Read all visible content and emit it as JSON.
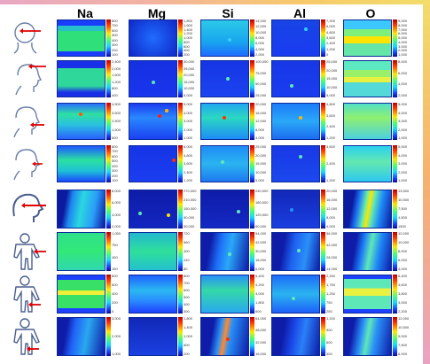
{
  "headers": [
    "Na",
    "Mg",
    "Si",
    "Al",
    "O"
  ],
  "colors": {
    "low": "#0a1aa8",
    "mid": "#29e07a",
    "high": "#ffe400",
    "peak": "#e00000"
  },
  "rows": [
    {
      "icon": "head-front-arrow-icon",
      "ticks": [
        [
          "800",
          "700",
          "600",
          "500",
          "400",
          "300",
          "200",
          "100"
        ],
        [
          "1,800",
          "1,600",
          "1,400",
          "1,200",
          "1,000",
          "800",
          "600",
          "400",
          "200"
        ],
        [
          "14,000",
          "12,000",
          "10,000",
          "8,000",
          "6,000",
          "4,000",
          "2,000"
        ],
        [
          "7,200",
          "6,000",
          "4,800",
          "3,600",
          "2,400",
          "1,200",
          "0"
        ],
        [
          "9,000",
          "8,000",
          "7,000",
          "6,000",
          "5,000",
          "4,000",
          "3,000",
          "2,000",
          "1,000"
        ]
      ]
    },
    {
      "icon": "head-top-arrow-icon",
      "ticks": [
        [
          "2,400",
          "2,000",
          "1,600",
          "1,200",
          "800",
          "400"
        ],
        [
          "30,000",
          "25,000",
          "20,000",
          "15,000",
          "10,000",
          "5,000"
        ],
        [
          "100,000",
          "75,000",
          "50,000",
          "25,000"
        ],
        [
          "25,000",
          "20,000",
          "15,000",
          "10,000",
          "5,000"
        ],
        [
          "8,000",
          "6,000",
          "4,000",
          "2,000"
        ]
      ]
    },
    {
      "icon": "head-back-arrow-icon",
      "ticks": [
        [
          "4,500",
          "3,500",
          "2,500",
          "1,500",
          "500"
        ],
        [
          "5,000",
          "4,000",
          "3,000",
          "2,000",
          "1,000"
        ],
        [
          "20,000",
          "16,000",
          "12,000",
          "8,000",
          "4,000"
        ],
        [
          "4,800",
          "3,600",
          "2,400",
          "1,200"
        ],
        [
          "5,000",
          "4,000",
          "3,000",
          "2,000",
          "1,000"
        ]
      ]
    },
    {
      "icon": "head-ear-arrow-icon",
      "ticks": [
        [
          "800",
          "700",
          "600",
          "500",
          "400",
          "300",
          "200",
          "100"
        ],
        [
          "6,000",
          "4,800",
          "3,600",
          "2,400",
          "1,200"
        ],
        [
          "25,000",
          "20,000",
          "15,000",
          "10,000",
          "5,000"
        ],
        [
          "3,600",
          "2,400",
          "1,200"
        ],
        [
          "5,000",
          "4,000",
          "3,000",
          "2,000",
          "1,000"
        ]
      ]
    },
    {
      "icon": "head-profile-arrow-icon",
      "ticks": [
        [
          "8,000",
          "6,000",
          "4,000",
          "2,000"
        ],
        [
          "270,000",
          "210,000",
          "150,000",
          "90,000",
          "30,000"
        ],
        [
          "240,000",
          "180,000",
          "120,000",
          "60,000"
        ],
        [
          "20,000",
          "16,000",
          "12,000",
          "8,000",
          "4,000"
        ],
        [
          "13,500",
          "10,500",
          "7,500",
          "4,500",
          "1500"
        ]
      ]
    },
    {
      "icon": "body-front-arm-icon",
      "ticks": [
        [
          "1,050",
          "750",
          "450",
          "150"
        ],
        [
          "720",
          "560",
          "400",
          "240",
          "80"
        ],
        [
          "54,000",
          "42,000",
          "30,000",
          "18,000",
          "6,000"
        ],
        [
          "56,000",
          "42,000",
          "28,000",
          "14,000"
        ],
        [
          "12,000",
          "10,000",
          "8,000",
          "6,000",
          "4,000"
        ]
      ]
    },
    {
      "icon": "body-front-leg-icon",
      "ticks": [
        [
          "800",
          "600",
          "400",
          "200",
          "0"
        ],
        [
          "800",
          "700",
          "600",
          "500",
          "400",
          "300"
        ],
        [
          "5,400",
          "4,200",
          "3,000",
          "1,800",
          "600"
        ],
        [
          "2,250",
          "1,750",
          "1,250",
          "750",
          "250"
        ],
        [
          "5,400",
          "4,600",
          "3,800",
          "3,000",
          "2,200"
        ]
      ]
    },
    {
      "icon": "body-back-leg-icon",
      "ticks": [
        [
          "3,000",
          "2,000",
          "1,000"
        ],
        [
          "1,800",
          "1,400",
          "1,000",
          "600",
          "200"
        ],
        [
          "64,000",
          "48,000",
          "32,000",
          "16,000"
        ],
        [
          "1,200",
          "900",
          "600",
          "300"
        ],
        [
          "12,000",
          "10,500",
          "9,000",
          "7,500",
          "6,000"
        ]
      ]
    }
  ]
}
